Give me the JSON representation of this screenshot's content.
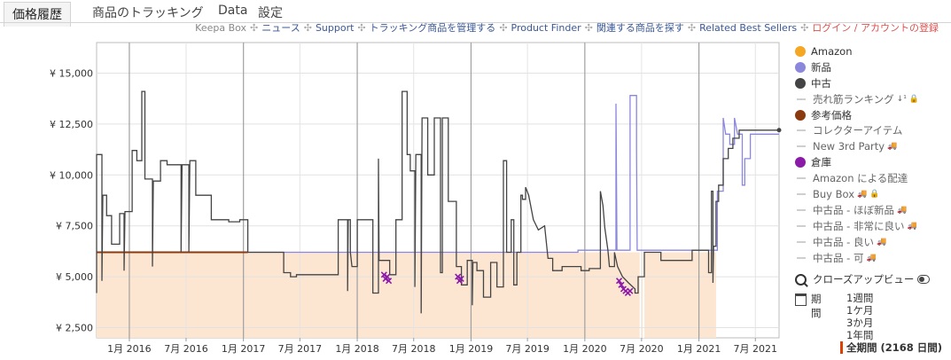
{
  "tabs": [
    {
      "label": "価格履歴",
      "active": true
    },
    {
      "label": "商品のトラッキング",
      "active": false
    },
    {
      "label": "Data",
      "active": false
    },
    {
      "label": "設定",
      "active": false
    }
  ],
  "toplinks": [
    {
      "label": "Keepa Box",
      "style": "muted"
    },
    {
      "label": "ニュース",
      "style": "link"
    },
    {
      "label": "Support",
      "style": "link"
    },
    {
      "label": "トラッキング商品を管理する",
      "style": "link"
    },
    {
      "label": "Product Finder",
      "style": "link"
    },
    {
      "label": "関連する商品を探す",
      "style": "link"
    },
    {
      "label": "Related Best Sellers",
      "style": "link"
    },
    {
      "label": "ログイン / アカウントの登録",
      "style": "red"
    }
  ],
  "legend": [
    {
      "label": "Amazon",
      "type": "dot",
      "color": "#f5a623"
    },
    {
      "label": "新品",
      "type": "dot",
      "color": "#8b87dd"
    },
    {
      "label": "中古",
      "type": "dot",
      "color": "#444444"
    },
    {
      "label": "売れ筋ランキング",
      "type": "dash",
      "icons": [
        "sort-icon",
        "lock-icon"
      ]
    },
    {
      "label": "参考価格",
      "type": "dot",
      "color": "#8b3a0f"
    },
    {
      "label": "コレクターアイテム",
      "type": "dash"
    },
    {
      "label": "New 3rd Party",
      "type": "dash",
      "icons": [
        "truck-icon"
      ]
    },
    {
      "label": "倉庫",
      "type": "dot",
      "color": "#8b1aa8"
    },
    {
      "label": "Amazon による配達",
      "type": "dash"
    },
    {
      "label": "Buy Box",
      "type": "dash",
      "icons": [
        "truck-icon",
        "lock-icon"
      ]
    },
    {
      "label": "中古品 - ほぼ新品",
      "type": "dash",
      "icons": [
        "truck-icon"
      ]
    },
    {
      "label": "中古品 - 非常に良い",
      "type": "dash",
      "icons": [
        "truck-icon"
      ]
    },
    {
      "label": "中古品 - 良い",
      "type": "dash",
      "icons": [
        "truck-icon"
      ]
    },
    {
      "label": "中古品 - 可",
      "type": "dash",
      "icons": [
        "truck-icon"
      ]
    }
  ],
  "closeup_label": "クローズアップビュー",
  "period": {
    "label": "期間",
    "options": [
      "1週間",
      "1ケ月",
      "3か月",
      "1年間",
      "全期間 (2168 日間)"
    ],
    "selected_index": 4
  },
  "chart_data": {
    "type": "line",
    "title": "",
    "xlabel": "",
    "ylabel": "",
    "ylim": [
      2000,
      16500
    ],
    "xlim": [
      "2015-09-18",
      "2021-09-15"
    ],
    "grid": true,
    "y_ticks": [
      2500,
      5000,
      7500,
      10000,
      12500,
      15000
    ],
    "y_tick_labels": [
      "¥ 2,500",
      "¥ 5,000",
      "¥ 7,500",
      "¥ 10,000",
      "¥ 12,500",
      "¥ 15,000"
    ],
    "x_ticks": [
      "2016-01-01",
      "2016-07-01",
      "2017-01-01",
      "2017-07-01",
      "2018-01-01",
      "2018-07-01",
      "2019-01-01",
      "2019-07-01",
      "2020-01-01",
      "2020-07-01",
      "2021-01-01",
      "2021-07-01"
    ],
    "x_tick_labels": [
      "1月 2016",
      "7月 2016",
      "1月 2017",
      "7月 2017",
      "1月 2018",
      "7月 2018",
      "1月 2019",
      "7月 2019",
      "1月 2020",
      "7月 2020",
      "1月 2021",
      "7月 2021"
    ],
    "series": [
      {
        "name": "参考価格",
        "color": "#8b3a0f",
        "points": [
          [
            "2015-09-18",
            6200
          ],
          [
            "2017-01-15",
            6200
          ]
        ]
      },
      {
        "name": "新品",
        "color": "#8b87dd",
        "points": [
          [
            "2017-01-15",
            6200
          ],
          [
            "2019-12-10",
            6200
          ],
          [
            "2019-12-10",
            6300
          ],
          [
            "2020-04-10",
            6300
          ],
          [
            "2020-04-10",
            13500
          ],
          [
            "2020-04-13",
            6300
          ],
          [
            "2020-05-25",
            6300
          ],
          [
            "2020-05-25",
            13900
          ],
          [
            "2020-06-15",
            13900
          ],
          [
            "2020-06-15",
            11200
          ],
          [
            "2020-06-17",
            6300
          ],
          [
            "2021-03-01",
            6300
          ],
          [
            "2021-03-01",
            9200
          ],
          [
            "2021-03-20",
            9200
          ],
          [
            "2021-03-20",
            12800
          ],
          [
            "2021-03-28",
            12000
          ],
          [
            "2021-04-10",
            12000
          ],
          [
            "2021-04-10",
            11500
          ],
          [
            "2021-04-25",
            11500
          ],
          [
            "2021-04-25",
            12800
          ],
          [
            "2021-05-05",
            12000
          ],
          [
            "2021-05-20",
            12000
          ],
          [
            "2021-05-20",
            9500
          ],
          [
            "2021-05-28",
            9500
          ],
          [
            "2021-05-28",
            10800
          ],
          [
            "2021-06-15",
            10800
          ],
          [
            "2021-06-15",
            12000
          ],
          [
            "2021-09-15",
            12000
          ]
        ]
      },
      {
        "name": "中古",
        "color": "#444444",
        "points": [
          [
            "2015-09-18",
            4200
          ],
          [
            "2015-09-18",
            11000
          ],
          [
            "2015-10-05",
            11000
          ],
          [
            "2015-10-05",
            4800
          ],
          [
            "2015-10-08",
            9000
          ],
          [
            "2015-10-20",
            9000
          ],
          [
            "2015-10-20",
            8000
          ],
          [
            "2015-11-05",
            8000
          ],
          [
            "2015-11-05",
            6600
          ],
          [
            "2015-12-01",
            6600
          ],
          [
            "2015-12-01",
            8100
          ],
          [
            "2015-12-15",
            8100
          ],
          [
            "2015-12-15",
            5300
          ],
          [
            "2015-12-18",
            8200
          ],
          [
            "2016-01-10",
            8200
          ],
          [
            "2016-01-10",
            11200
          ],
          [
            "2016-01-25",
            11200
          ],
          [
            "2016-01-25",
            10700
          ],
          [
            "2016-02-10",
            10700
          ],
          [
            "2016-02-10",
            14100
          ],
          [
            "2016-02-20",
            14100
          ],
          [
            "2016-02-20",
            9800
          ],
          [
            "2016-03-15",
            9800
          ],
          [
            "2016-03-15",
            5500
          ],
          [
            "2016-03-18",
            9700
          ],
          [
            "2016-04-10",
            9700
          ],
          [
            "2016-04-10",
            10700
          ],
          [
            "2016-05-01",
            10700
          ],
          [
            "2016-05-01",
            10500
          ],
          [
            "2016-06-15",
            10500
          ],
          [
            "2016-06-15",
            6200
          ],
          [
            "2016-06-18",
            10500
          ],
          [
            "2016-07-10",
            10500
          ],
          [
            "2016-07-10",
            6200
          ],
          [
            "2016-07-13",
            10700
          ],
          [
            "2016-08-01",
            10700
          ],
          [
            "2016-08-01",
            9000
          ],
          [
            "2016-09-20",
            9000
          ],
          [
            "2016-09-20",
            7800
          ],
          [
            "2016-11-15",
            7800
          ],
          [
            "2016-11-15",
            7700
          ],
          [
            "2016-12-20",
            7700
          ],
          [
            "2016-12-20",
            7800
          ],
          [
            "2017-01-15",
            7800
          ],
          [
            "2017-01-15",
            6200
          ],
          [
            "2017-05-10",
            6200
          ],
          [
            "2017-05-10",
            5200
          ],
          [
            "2017-06-01",
            5200
          ],
          [
            "2017-06-01",
            5000
          ],
          [
            "2017-06-20",
            5000
          ],
          [
            "2017-06-20",
            5100
          ],
          [
            "2017-11-01",
            5100
          ],
          [
            "2017-11-01",
            7800
          ],
          [
            "2017-12-01",
            7800
          ],
          [
            "2017-12-01",
            4300
          ],
          [
            "2017-12-03",
            7800
          ],
          [
            "2017-12-10",
            7800
          ],
          [
            "2017-12-10",
            6200
          ],
          [
            "2017-12-15",
            5500
          ],
          [
            "2018-01-01",
            5500
          ],
          [
            "2018-01-01",
            7800
          ],
          [
            "2018-02-20",
            7800
          ],
          [
            "2018-02-20",
            4200
          ],
          [
            "2018-03-10",
            4200
          ],
          [
            "2018-03-10",
            10800
          ],
          [
            "2018-03-12",
            5800
          ],
          [
            "2018-04-15",
            5800
          ],
          [
            "2018-04-15",
            5100
          ],
          [
            "2018-05-05",
            5100
          ],
          [
            "2018-05-05",
            7800
          ],
          [
            "2018-05-25",
            7800
          ],
          [
            "2018-05-25",
            14100
          ],
          [
            "2018-06-10",
            14100
          ],
          [
            "2018-06-10",
            11000
          ],
          [
            "2018-06-20",
            11000
          ],
          [
            "2018-06-20",
            10200
          ],
          [
            "2018-07-05",
            10200
          ],
          [
            "2018-07-05",
            4500
          ],
          [
            "2018-07-08",
            11000
          ],
          [
            "2018-07-25",
            11000
          ],
          [
            "2018-07-25",
            3200
          ],
          [
            "2018-07-28",
            12800
          ],
          [
            "2018-08-15",
            12800
          ],
          [
            "2018-08-15",
            10000
          ],
          [
            "2018-09-05",
            10000
          ],
          [
            "2018-09-05",
            12800
          ],
          [
            "2018-09-25",
            12800
          ],
          [
            "2018-09-25",
            5200
          ],
          [
            "2018-10-01",
            5200
          ],
          [
            "2018-10-01",
            12800
          ],
          [
            "2018-10-20",
            12800
          ],
          [
            "2018-10-20",
            8700
          ],
          [
            "2018-11-15",
            8700
          ],
          [
            "2018-11-15",
            5500
          ],
          [
            "2018-12-01",
            5500
          ],
          [
            "2018-12-01",
            4600
          ],
          [
            "2018-12-20",
            4600
          ],
          [
            "2018-12-20",
            5800
          ],
          [
            "2019-01-05",
            5800
          ],
          [
            "2019-01-05",
            3600
          ],
          [
            "2019-01-07",
            5700
          ],
          [
            "2019-01-20",
            5700
          ],
          [
            "2019-01-20",
            5300
          ],
          [
            "2019-02-10",
            5300
          ],
          [
            "2019-02-10",
            4000
          ],
          [
            "2019-03-05",
            4000
          ],
          [
            "2019-03-05",
            5700
          ],
          [
            "2019-03-25",
            5700
          ],
          [
            "2019-03-25",
            4500
          ],
          [
            "2019-04-15",
            4500
          ],
          [
            "2019-04-15",
            10700
          ],
          [
            "2019-04-25",
            10700
          ],
          [
            "2019-04-25",
            6200
          ],
          [
            "2019-05-10",
            6200
          ],
          [
            "2019-05-10",
            7800
          ],
          [
            "2019-05-18",
            7800
          ],
          [
            "2019-05-18",
            4600
          ],
          [
            "2019-05-28",
            4600
          ],
          [
            "2019-05-28",
            6200
          ],
          [
            "2019-06-10",
            6200
          ],
          [
            "2019-06-10",
            9000
          ],
          [
            "2019-06-15",
            9000
          ],
          [
            "2019-06-15",
            8800
          ],
          [
            "2019-06-25",
            8800
          ],
          [
            "2019-06-25",
            9400
          ],
          [
            "2019-07-05",
            9000
          ],
          [
            "2019-07-20",
            7800
          ],
          [
            "2019-08-05",
            7300
          ],
          [
            "2019-08-25",
            7500
          ],
          [
            "2019-09-05",
            5900
          ],
          [
            "2019-09-20",
            5900
          ],
          [
            "2019-09-20",
            5300
          ],
          [
            "2019-10-20",
            5300
          ],
          [
            "2019-10-20",
            5500
          ],
          [
            "2019-12-20",
            5500
          ],
          [
            "2019-12-20",
            5300
          ],
          [
            "2020-01-15",
            5300
          ],
          [
            "2020-01-15",
            5400
          ],
          [
            "2020-02-20",
            5400
          ],
          [
            "2020-02-20",
            9200
          ],
          [
            "2020-02-28",
            8500
          ],
          [
            "2020-03-05",
            7400
          ],
          [
            "2020-03-15",
            6300
          ],
          [
            "2020-03-20",
            5500
          ],
          [
            "2020-04-05",
            5500
          ],
          [
            "2020-04-05",
            6200
          ],
          [
            "2020-04-15",
            5500
          ],
          [
            "2020-05-01",
            5000
          ],
          [
            "2020-05-20",
            4700
          ],
          [
            "2020-06-10",
            4400
          ],
          [
            "2020-06-10",
            4200
          ],
          [
            "2020-06-20",
            4200
          ],
          [
            "2020-06-20",
            5000
          ],
          [
            "2020-07-10",
            5000
          ],
          [
            "2020-07-10",
            6200
          ],
          [
            "2020-09-01",
            6200
          ],
          [
            "2020-09-01",
            5800
          ],
          [
            "2020-12-10",
            5800
          ],
          [
            "2020-12-10",
            6300
          ],
          [
            "2021-02-01",
            6300
          ],
          [
            "2021-02-01",
            5200
          ],
          [
            "2021-02-10",
            5200
          ],
          [
            "2021-02-10",
            9200
          ],
          [
            "2021-02-15",
            9200
          ],
          [
            "2021-02-15",
            4700
          ],
          [
            "2021-02-17",
            6500
          ],
          [
            "2021-02-25",
            6500
          ],
          [
            "2021-02-25",
            8700
          ],
          [
            "2021-03-05",
            8700
          ],
          [
            "2021-03-05",
            9500
          ],
          [
            "2021-03-20",
            9500
          ],
          [
            "2021-03-20",
            10800
          ],
          [
            "2021-04-05",
            10800
          ],
          [
            "2021-04-05",
            11300
          ],
          [
            "2021-04-20",
            11300
          ],
          [
            "2021-04-20",
            11800
          ],
          [
            "2021-05-10",
            11800
          ],
          [
            "2021-05-10",
            12200
          ],
          [
            "2021-09-15",
            12200
          ]
        ]
      },
      {
        "name": "倉庫",
        "color": "#8b1aa8",
        "points": [
          [
            "2018-03-28",
            5100
          ],
          [
            "2018-04-02",
            4900
          ],
          [
            "2018-04-07",
            5000
          ],
          [
            "2018-04-12",
            4800
          ],
          [
            "2018-11-20",
            5000
          ],
          [
            "2018-11-25",
            4800
          ],
          [
            "2018-11-30",
            4900
          ],
          [
            "2020-04-20",
            4800
          ],
          [
            "2020-04-27",
            4600
          ],
          [
            "2020-05-04",
            4400
          ],
          [
            "2020-05-11",
            4300
          ],
          [
            "2020-05-18",
            4200
          ],
          [
            "2020-05-25",
            4300
          ]
        ]
      }
    ],
    "bands": [
      {
        "name": "参考価格",
        "color": "#fce6d2",
        "value": 6200,
        "from": "2015-09-18",
        "to": "2021-02-25"
      }
    ]
  }
}
